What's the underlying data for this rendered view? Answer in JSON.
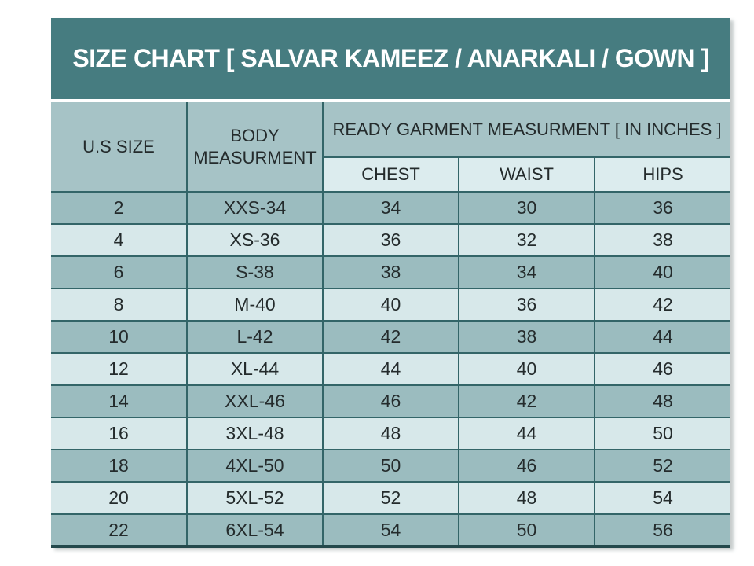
{
  "title": "SIZE CHART [ SALVAR KAMEEZ / ANARKALI / GOWN ]",
  "chart_data": {
    "type": "table",
    "title": "SIZE CHART [ SALVAR KAMEEZ / ANARKALI / GOWN ]",
    "group_header": "READY GARMENT MEASURMENT [ IN INCHES ]",
    "columns": [
      "U.S SIZE",
      "BODY MEASURMENT",
      "CHEST",
      "WAIST",
      "HIPS"
    ],
    "rows": [
      [
        "2",
        "XXS-34",
        "34",
        "30",
        "36"
      ],
      [
        "4",
        "XS-36",
        "36",
        "32",
        "38"
      ],
      [
        "6",
        "S-38",
        "38",
        "34",
        "40"
      ],
      [
        "8",
        "M-40",
        "40",
        "36",
        "42"
      ],
      [
        "10",
        "L-42",
        "42",
        "38",
        "44"
      ],
      [
        "12",
        "XL-44",
        "44",
        "40",
        "46"
      ],
      [
        "14",
        "XXL-46",
        "46",
        "42",
        "48"
      ],
      [
        "16",
        "3XL-48",
        "48",
        "44",
        "50"
      ],
      [
        "18",
        "4XL-50",
        "50",
        "46",
        "52"
      ],
      [
        "20",
        "5XL-52",
        "52",
        "48",
        "54"
      ],
      [
        "22",
        "6XL-54",
        "54",
        "50",
        "56"
      ]
    ],
    "row_cell_names": [
      "us-size",
      "body-measurement",
      "chest",
      "waist",
      "hips"
    ]
  },
  "colors": {
    "title_bg": "#467c80",
    "title_text": "#ffffff",
    "header_cell_bg": "#a6c3c6",
    "subheader_bg": "#dcecee",
    "row_dark": "#9bbcbf",
    "row_light": "#d7e8ea",
    "grid_border": "#336568",
    "bottom_border": "#24494c",
    "cell_text": "#242b2c"
  }
}
